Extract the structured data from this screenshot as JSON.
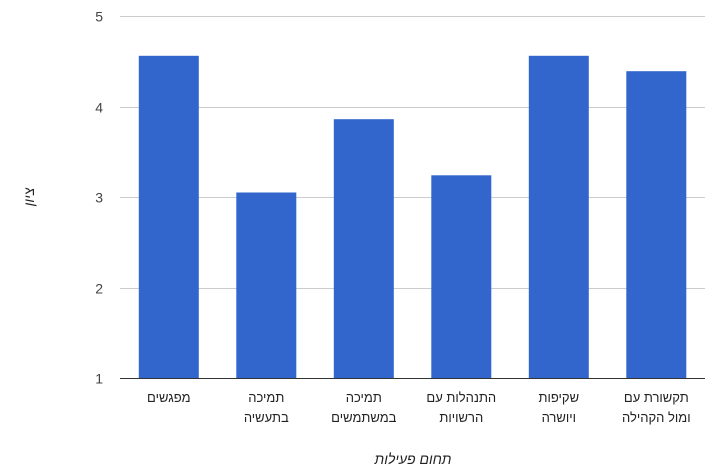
{
  "chart_data": {
    "type": "bar",
    "title": "",
    "xlabel": "תחום פעילות",
    "ylabel": "ציון",
    "ylim": [
      1,
      5
    ],
    "yticks": [
      1,
      2,
      3,
      4,
      5
    ],
    "grid": true,
    "legend": "none",
    "categories": [
      [
        "מפגשים"
      ],
      [
        "תמיכה",
        "בתעשיה"
      ],
      [
        "תמיכה",
        "במשתמשים"
      ],
      [
        "התנהלות עם",
        "הרשויות"
      ],
      [
        "שקיפות",
        "ויושרה"
      ],
      [
        "תקשורת עם",
        "ומול הקהילה"
      ]
    ],
    "values": [
      4.56,
      3.05,
      3.86,
      3.24,
      4.56,
      4.39
    ],
    "bar_color": "#3366cc"
  }
}
